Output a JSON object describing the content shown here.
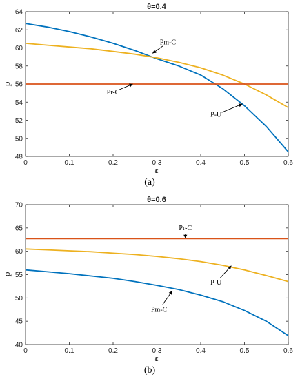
{
  "chart_data": [
    {
      "type": "line",
      "title": "θ=0.4",
      "xlabel": "ε",
      "ylabel": "p",
      "panel_label": "(a)",
      "xlim": [
        0,
        0.6
      ],
      "ylim": [
        48,
        64
      ],
      "xticks": [
        "0",
        "0.1",
        "0.2",
        "0.3",
        "0.4",
        "0.5",
        "0.6"
      ],
      "yticks": [
        "48",
        "50",
        "52",
        "54",
        "56",
        "58",
        "60",
        "62",
        "64"
      ],
      "xtick_values": [
        0,
        0.1,
        0.2,
        0.3,
        0.4,
        0.5,
        0.6
      ],
      "ytick_values": [
        48,
        50,
        52,
        54,
        56,
        58,
        60,
        62,
        64
      ],
      "x": [
        0,
        0.05,
        0.1,
        0.15,
        0.2,
        0.25,
        0.3,
        0.35,
        0.4,
        0.45,
        0.5,
        0.55,
        0.6
      ],
      "series": [
        {
          "color": "#0072bd",
          "values": [
            62.7,
            62.3,
            61.8,
            61.2,
            60.5,
            59.7,
            58.8,
            58.0,
            57.0,
            55.5,
            53.6,
            51.3,
            48.5
          ]
        },
        {
          "color": "#edb120",
          "values": [
            60.5,
            60.3,
            60.1,
            59.9,
            59.6,
            59.3,
            58.9,
            58.4,
            57.8,
            57.0,
            56.0,
            54.8,
            53.4
          ]
        },
        {
          "color": "#d95319",
          "values": [
            56.0,
            56.0,
            56.0,
            56.0,
            56.0,
            56.0,
            56.0,
            56.0,
            56.0,
            56.0,
            56.0,
            56.0,
            56.0
          ]
        }
      ],
      "annotations": [
        {
          "text": "Pm-C",
          "text_at": [
            0.325,
            60.6
          ],
          "arrow_to": [
            0.29,
            59.4
          ]
        },
        {
          "text": "Pr-C",
          "text_at": [
            0.2,
            55.1
          ],
          "arrow_to": [
            0.245,
            56.0
          ]
        },
        {
          "text": "P-U",
          "text_at": [
            0.435,
            52.6
          ],
          "arrow_to": [
            0.495,
            53.8
          ]
        }
      ]
    },
    {
      "type": "line",
      "title": "θ=0.6",
      "xlabel": "ε",
      "ylabel": "p",
      "panel_label": "(b)",
      "xlim": [
        0,
        0.6
      ],
      "ylim": [
        40,
        70
      ],
      "xticks": [
        "0",
        "0.1",
        "0.2",
        "0.3",
        "0.4",
        "0.5",
        "0.6"
      ],
      "yticks": [
        "40",
        "45",
        "50",
        "55",
        "60",
        "65",
        "70"
      ],
      "xtick_values": [
        0,
        0.1,
        0.2,
        0.3,
        0.4,
        0.5,
        0.6
      ],
      "ytick_values": [
        40,
        45,
        50,
        55,
        60,
        65,
        70
      ],
      "x": [
        0,
        0.05,
        0.1,
        0.15,
        0.2,
        0.25,
        0.3,
        0.35,
        0.4,
        0.45,
        0.5,
        0.55,
        0.6
      ],
      "series": [
        {
          "color": "#0072bd",
          "values": [
            56.0,
            55.6,
            55.2,
            54.7,
            54.2,
            53.5,
            52.7,
            51.8,
            50.6,
            49.2,
            47.3,
            45.0,
            41.9
          ]
        },
        {
          "color": "#edb120",
          "values": [
            60.5,
            60.3,
            60.1,
            59.9,
            59.6,
            59.3,
            58.9,
            58.4,
            57.8,
            57.0,
            56.0,
            54.8,
            53.5
          ]
        },
        {
          "color": "#d95319",
          "values": [
            62.7,
            62.7,
            62.7,
            62.7,
            62.7,
            62.7,
            62.7,
            62.7,
            62.7,
            62.7,
            62.7,
            62.7,
            62.7
          ]
        }
      ],
      "annotations": [
        {
          "text": "Pr-C",
          "text_at": [
            0.365,
            65.0
          ],
          "arrow_to": [
            0.365,
            62.8
          ]
        },
        {
          "text": "P-U",
          "text_at": [
            0.435,
            53.3
          ],
          "arrow_to": [
            0.47,
            56.9
          ]
        },
        {
          "text": "Pm-C",
          "text_at": [
            0.305,
            47.5
          ],
          "arrow_to": [
            0.335,
            51.5
          ]
        }
      ]
    }
  ]
}
